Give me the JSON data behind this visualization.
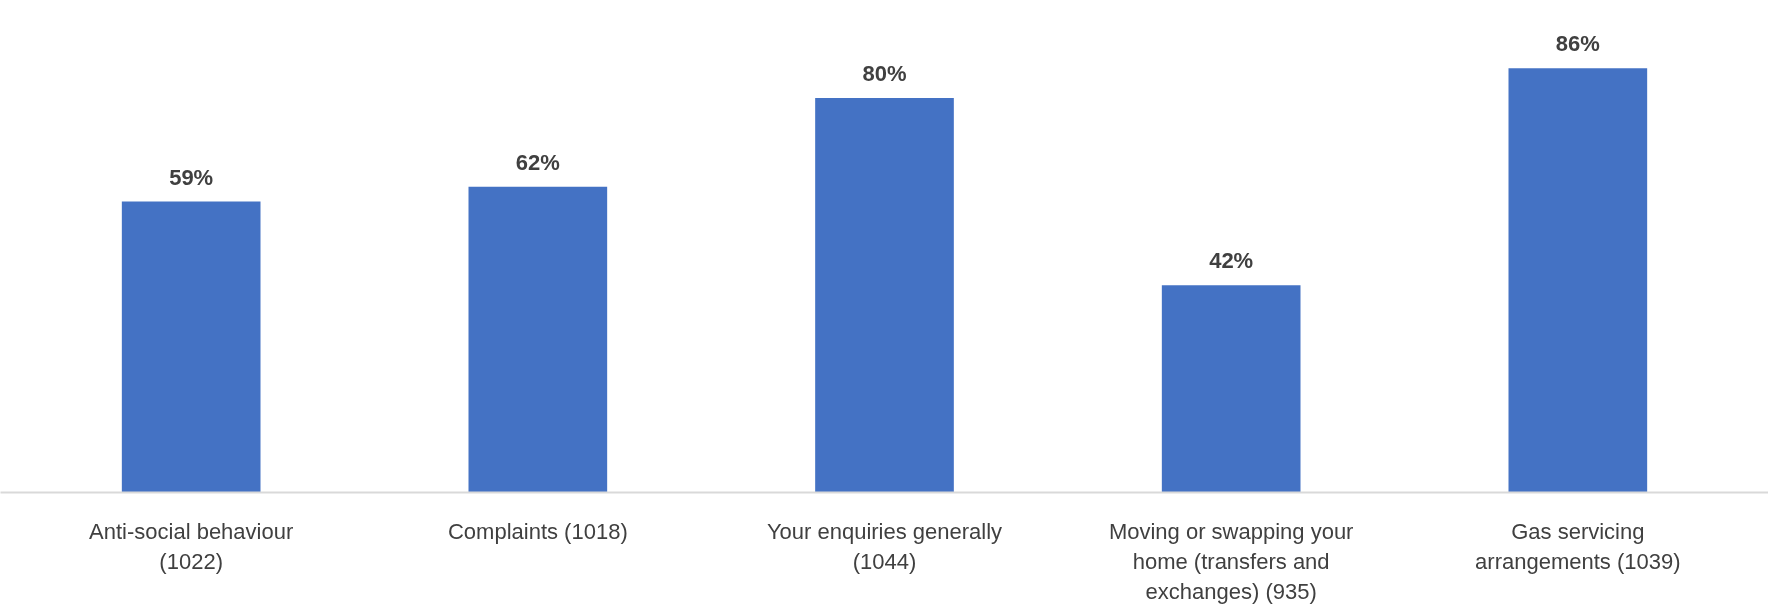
{
  "chart_data": {
    "type": "bar",
    "categories": [
      "Anti-social behaviour (1022)",
      "Complaints (1018)",
      "Your enquiries generally (1044)",
      "Moving or swapping your home (transfers and exchanges) (935)",
      "Gas servicing arrangements (1039)"
    ],
    "values": [
      59,
      62,
      80,
      42,
      86
    ],
    "value_labels": [
      "59%",
      "62%",
      "80%",
      "42%",
      "86%"
    ],
    "color": "#4472c4"
  }
}
